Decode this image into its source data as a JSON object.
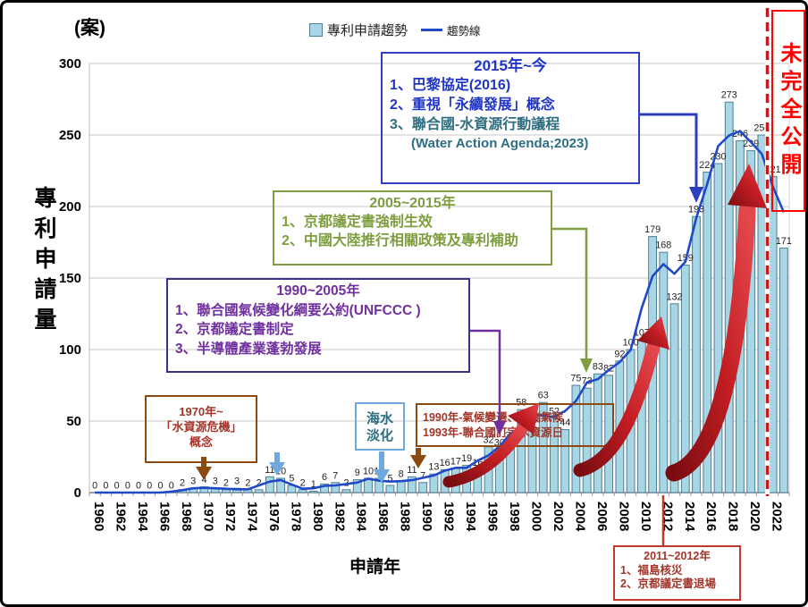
{
  "unit_label": "(案)",
  "legend": {
    "bars_label": "專利申請趨勢",
    "line_label": "趨勢線"
  },
  "incomplete_notice": "未完全公開",
  "chart_data": {
    "type": "bar",
    "title": "專利申請趨勢",
    "xlabel": "申請年",
    "ylabel": "專利申請量",
    "unit": "案",
    "ylim": [
      0,
      300
    ],
    "y_ticks": [
      0,
      50,
      100,
      150,
      200,
      250,
      300
    ],
    "grid": true,
    "start_year": 1960,
    "years": [
      1960,
      1961,
      1962,
      1963,
      1964,
      1965,
      1966,
      1967,
      1968,
      1969,
      1970,
      1971,
      1972,
      1973,
      1974,
      1975,
      1976,
      1977,
      1978,
      1979,
      1980,
      1981,
      1982,
      1983,
      1984,
      1985,
      1986,
      1987,
      1988,
      1989,
      1990,
      1991,
      1992,
      1993,
      1994,
      1995,
      1996,
      1997,
      1998,
      1999,
      2000,
      2001,
      2002,
      2003,
      2004,
      2005,
      2006,
      2007,
      2008,
      2009,
      2010,
      2011,
      2012,
      2013,
      2014,
      2015,
      2016,
      2017,
      2018,
      2019,
      2020,
      2021,
      2022,
      2023
    ],
    "values": [
      0,
      0,
      0,
      0,
      0,
      0,
      0,
      0,
      2,
      3,
      4,
      3,
      2,
      3,
      2,
      2,
      11,
      10,
      5,
      2,
      1,
      6,
      7,
      2,
      9,
      10,
      10,
      5,
      8,
      11,
      7,
      13,
      16,
      17,
      19,
      16,
      32,
      30,
      35,
      58,
      46,
      63,
      52,
      44,
      75,
      73,
      83,
      82,
      92,
      100,
      107,
      179,
      168,
      132,
      159,
      193,
      224,
      230,
      273,
      246,
      239,
      250,
      221,
      171
    ],
    "x_tick_labels": [
      1960,
      1962,
      1964,
      1966,
      1968,
      1970,
      1972,
      1974,
      1976,
      1978,
      1980,
      1982,
      1984,
      1986,
      1988,
      1990,
      1992,
      1994,
      1996,
      1998,
      2000,
      2002,
      2004,
      2006,
      2008,
      2010,
      2012,
      2014,
      2016,
      2018,
      2020,
      2022
    ],
    "series_label": "專利申請趨勢",
    "trendline_label": "趨勢線",
    "trendline_type": "moving_average_3",
    "incomplete_data_from_year": 2022
  },
  "annotations": {
    "era2015": {
      "title": "2015年~今",
      "item1": "1、巴黎協定(2016)",
      "item2": "2、重視「永續發展」概念",
      "item3": "3、聯合國-水資源行動議程",
      "subitem": "(Water Action Agenda;2023)"
    },
    "era2005": {
      "title": "2005~2015年",
      "item1": "1、京都議定書強制生效",
      "item2": "2、中國大陸推行相關政策及專利補助"
    },
    "era1990": {
      "title": "1990~2005年",
      "item1": "1、聯合國氣候變化綱要公約(UNFCCC )",
      "item2": "2、京都議定書制定",
      "item3": "3、半導體產業蓬勃發展"
    },
    "crisis1970": {
      "line1": "1970年~",
      "line2": "「水資源危機」",
      "line3": "概念"
    },
    "desalination": {
      "line1": "海水",
      "line2": "淡化"
    },
    "events1990": {
      "line1": "1990年-氣候變遷、極端氣候",
      "line2": "1993年-聯合國訂定水資源日"
    },
    "era2011": {
      "title": "2011~2012年",
      "item1": "1、福島核災",
      "item2": "2、京都議定書退場"
    }
  },
  "colors": {
    "bar_fill": "#A9D6E5",
    "bar_stroke": "#4E7F96",
    "trend_line": "#1F49C7",
    "grid": "#C8C8C8",
    "axis_line": "#7F7F7F",
    "red": "#FF0000",
    "red2011": "#C0392B",
    "blue_border": "#2E3EC0",
    "blue_text": "#1F35C5",
    "teal": "#2E6E80",
    "olive": "#7E9E40",
    "indigo": "#3A3286",
    "purple": "#7030A0",
    "brown": "#8C4A10",
    "darkred": "#A33529",
    "ltblue": "#6FA8DC",
    "swoosh_dark": "#7A0C10",
    "swoosh_bright": "#D62128"
  }
}
